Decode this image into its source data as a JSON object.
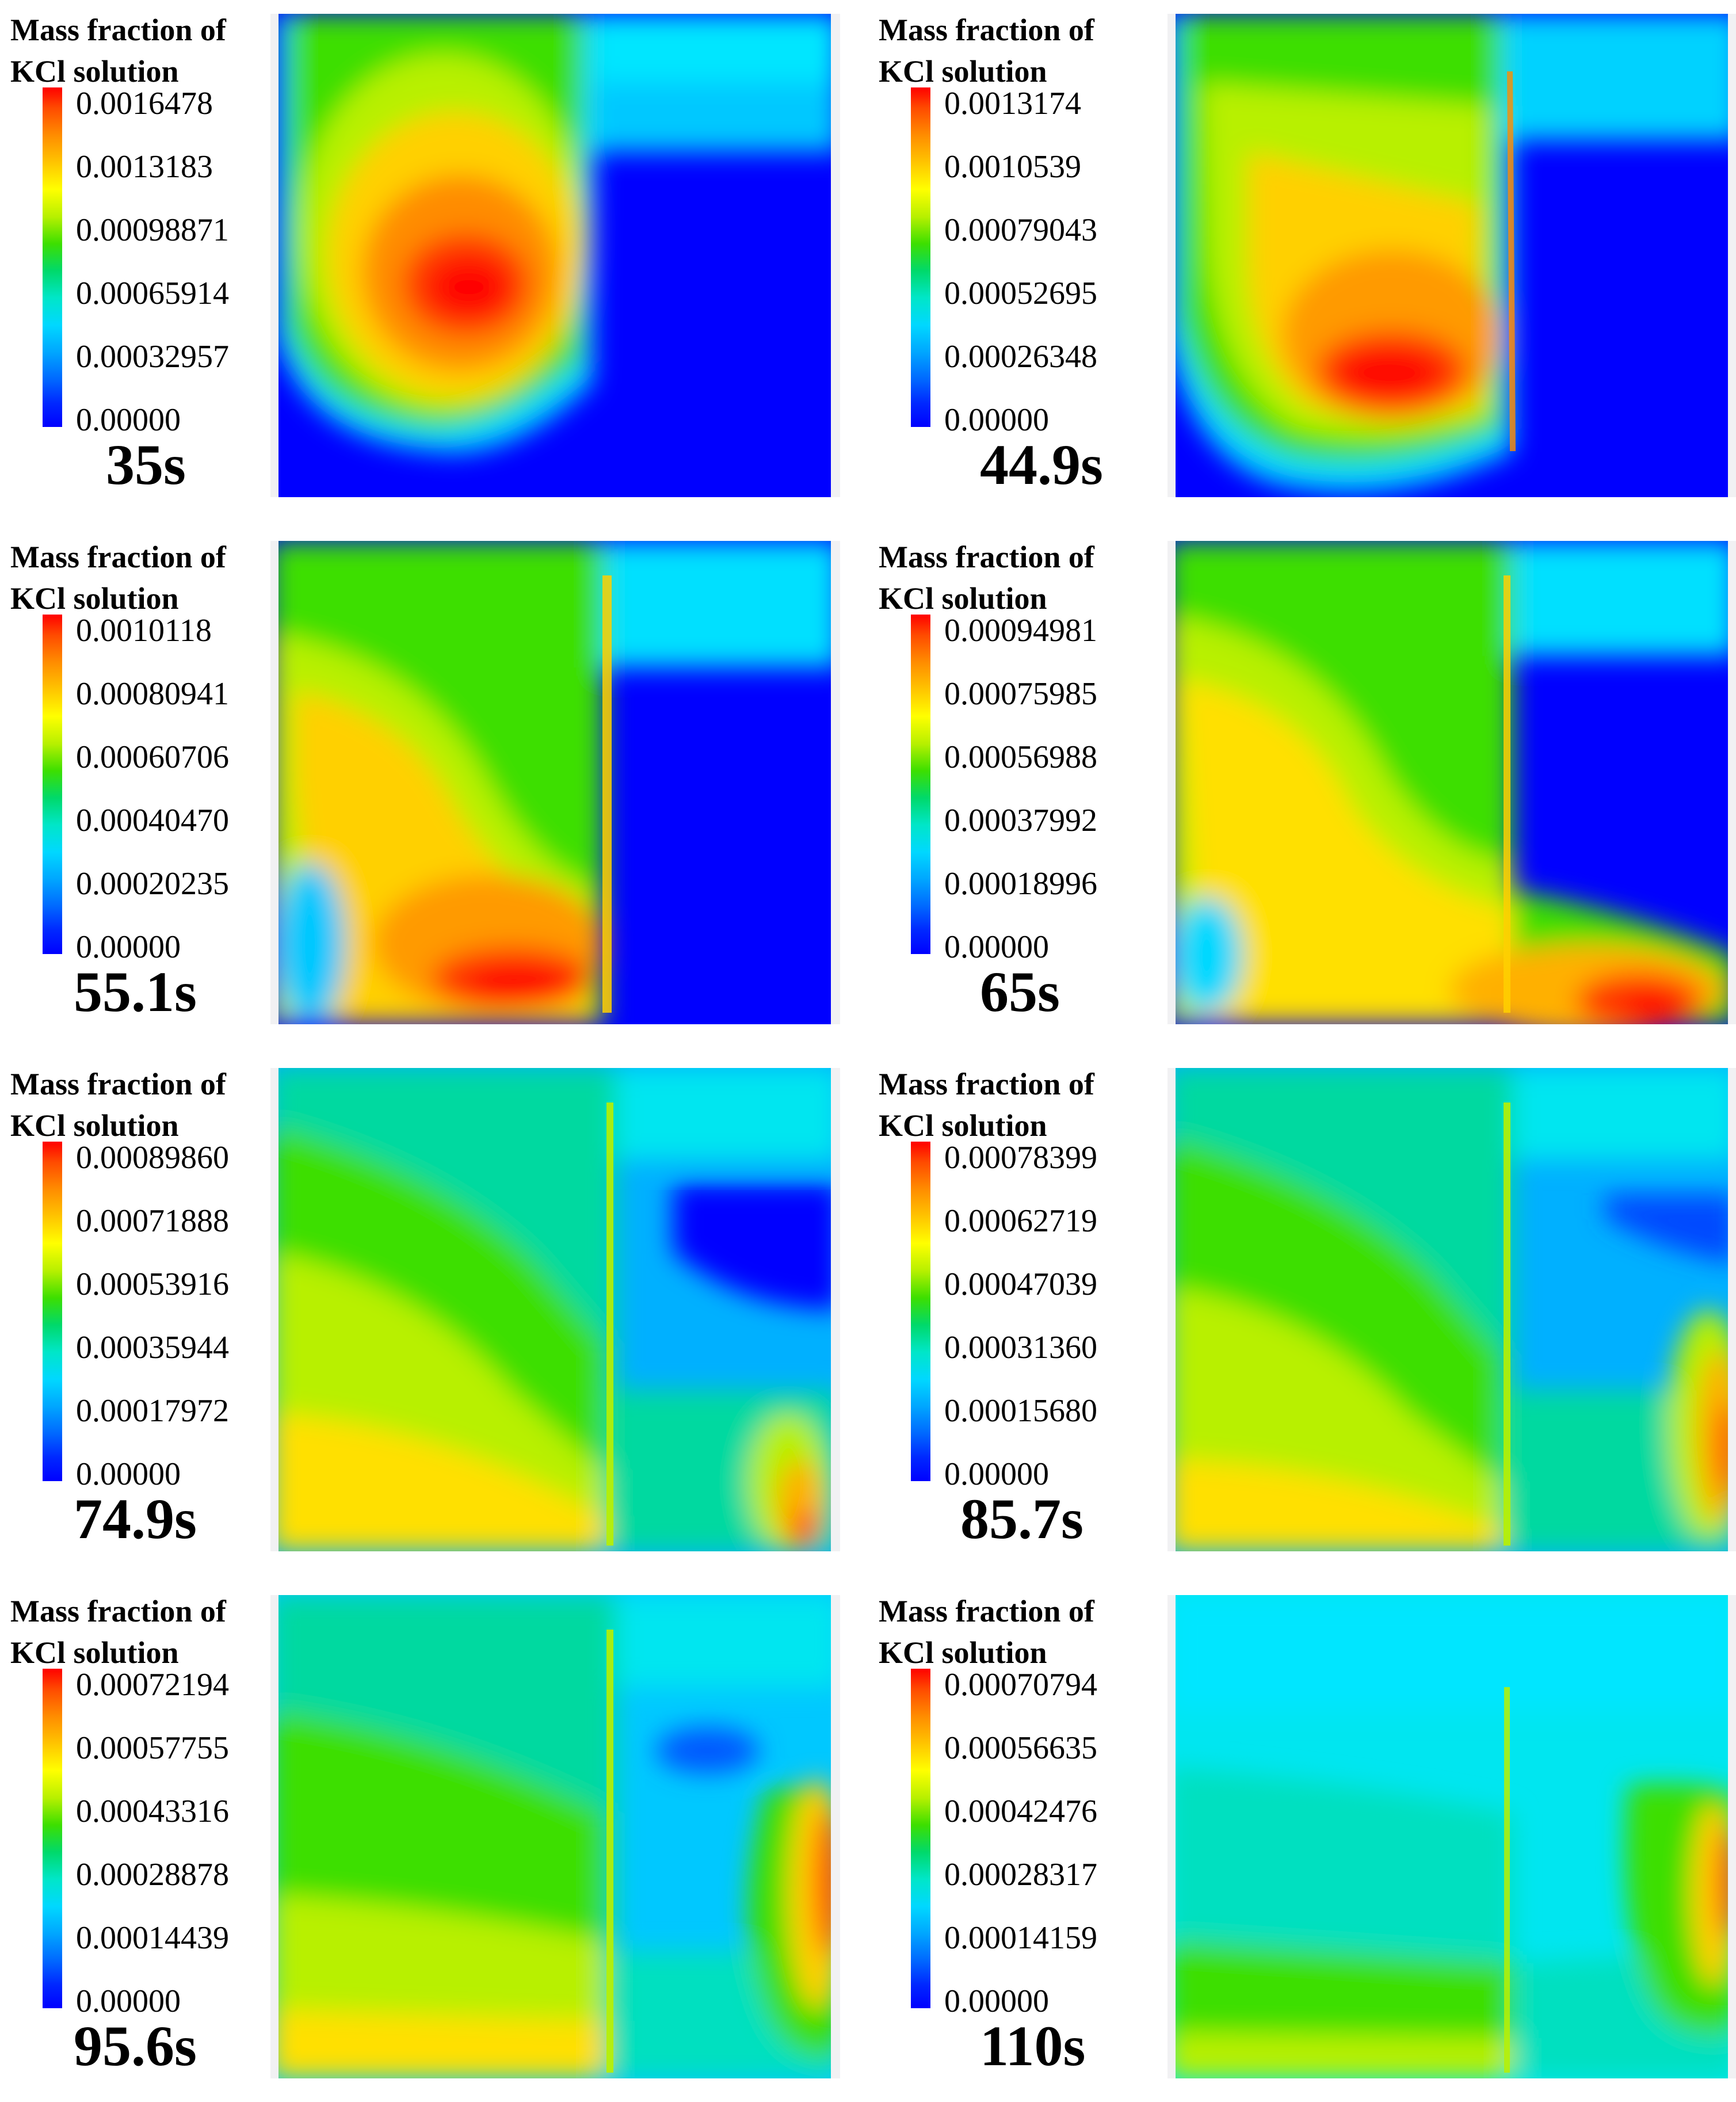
{
  "legend_title": {
    "line1": "Mass fraction of",
    "line2": "KCl solution"
  },
  "panels": [
    {
      "time": "35s",
      "ticks": [
        "0.0016478",
        "0.0013183",
        "0.00098871",
        "0.00065914",
        "0.00032957",
        "0.00000"
      ]
    },
    {
      "time": "44.9s",
      "ticks": [
        "0.0013174",
        "0.0010539",
        "0.00079043",
        "0.00052695",
        "0.00026348",
        "0.00000"
      ]
    },
    {
      "time": "55.1s",
      "ticks": [
        "0.0010118",
        "0.00080941",
        "0.00060706",
        "0.00040470",
        "0.00020235",
        "0.00000"
      ]
    },
    {
      "time": "65s",
      "ticks": [
        "0.00094981",
        "0.00075985",
        "0.00056988",
        "0.00037992",
        "0.00018996",
        "0.00000"
      ]
    },
    {
      "time": "74.9s",
      "ticks": [
        "0.00089860",
        "0.00071888",
        "0.00053916",
        "0.00035944",
        "0.00017972",
        "0.00000"
      ]
    },
    {
      "time": "85.7s",
      "ticks": [
        "0.00078399",
        "0.00062719",
        "0.00047039",
        "0.00031360",
        "0.00015680",
        "0.00000"
      ]
    },
    {
      "time": "95.6s",
      "ticks": [
        "0.00072194",
        "0.00057755",
        "0.00043316",
        "0.00028878",
        "0.00014439",
        "0.00000"
      ]
    },
    {
      "time": "110s",
      "ticks": [
        "0.00070794",
        "0.00056635",
        "0.00042476",
        "0.00028317",
        "0.00014159",
        "0.00000"
      ]
    }
  ],
  "colormap": [
    "#0000ff",
    "#00a6ff",
    "#00e6e6",
    "#3ddf00",
    "#ffff00",
    "#ff8c00",
    "#ff0000"
  ]
}
